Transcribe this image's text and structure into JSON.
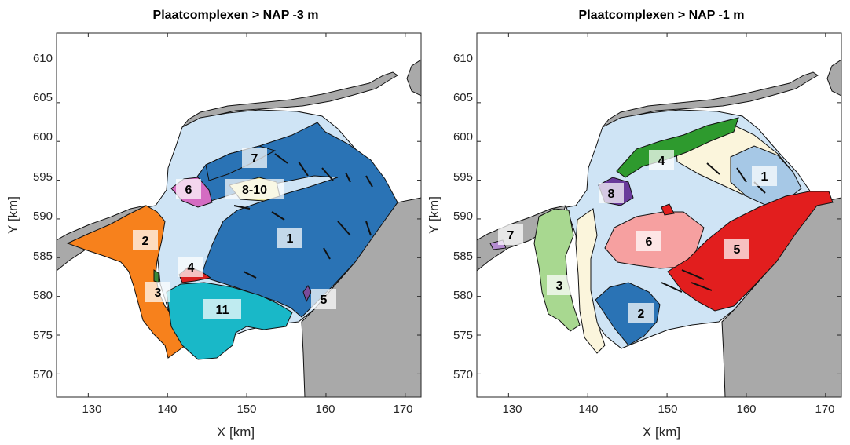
{
  "chart_data": [
    {
      "type": "map",
      "title": "Plaatcomplexen > NAP -3 m",
      "xlabel": "X [km]",
      "ylabel": "Y [km]",
      "xlim": [
        126,
        172
      ],
      "ylim": [
        567,
        614
      ],
      "xticks": [
        "130",
        "140",
        "150",
        "160",
        "170"
      ],
      "yticks": [
        "570",
        "575",
        "580",
        "585",
        "590",
        "595",
        "600",
        "605",
        "610"
      ],
      "regions": [
        {
          "label": "1",
          "color": "#2a73b5",
          "x": 155.5,
          "y": 587
        },
        {
          "label": "2",
          "color": "#f7811c",
          "x": 137.5,
          "y": 587
        },
        {
          "label": "3",
          "color": "#3a8a3a",
          "x": 139,
          "y": 580.5
        },
        {
          "label": "4",
          "color": "#d82020",
          "x": 143,
          "y": 583.5
        },
        {
          "label": "5",
          "color": "#7a4a9a",
          "x": 160,
          "y": 579.5
        },
        {
          "label": "6",
          "color": "#d46cc2",
          "x": 143,
          "y": 593
        },
        {
          "label": "7",
          "color": "#2a73b5",
          "x": 150.8,
          "y": 597
        },
        {
          "label": "8-10",
          "color": "#e8e4a0",
          "x": 150.8,
          "y": 593
        },
        {
          "label": "11",
          "color": "#19b8c8",
          "x": 147,
          "y": 578
        }
      ]
    },
    {
      "type": "map",
      "title": "Plaatcomplexen > NAP -1 m",
      "xlabel": "X [km]",
      "ylabel": "Y [km]",
      "xlim": [
        126,
        172
      ],
      "ylim": [
        567,
        614
      ],
      "xticks": [
        "130",
        "140",
        "150",
        "160",
        "170"
      ],
      "yticks": [
        "570",
        "575",
        "580",
        "585",
        "590",
        "595",
        "600",
        "605",
        "610"
      ],
      "regions": [
        {
          "label": "1",
          "color": "#a6c8e6",
          "x": 162,
          "y": 594
        },
        {
          "label": "2",
          "color": "#2a73b5",
          "x": 146.3,
          "y": 577.5
        },
        {
          "label": "3",
          "color": "#a8d890",
          "x": 136.3,
          "y": 581.3
        },
        {
          "label": "4",
          "color": "#2e9a2e",
          "x": 149.5,
          "y": 597
        },
        {
          "label": "5",
          "color": "#e21e1e",
          "x": 159,
          "y": 585.5
        },
        {
          "label": "6",
          "color": "#f6a0a0",
          "x": 157.5,
          "y": 586.7
        },
        {
          "label": "7",
          "color": "#b48cd0",
          "x": 130,
          "y": 587.5
        },
        {
          "label": "8",
          "color": "#6a3a9a",
          "x": 142.5,
          "y": 592.3
        }
      ]
    }
  ]
}
